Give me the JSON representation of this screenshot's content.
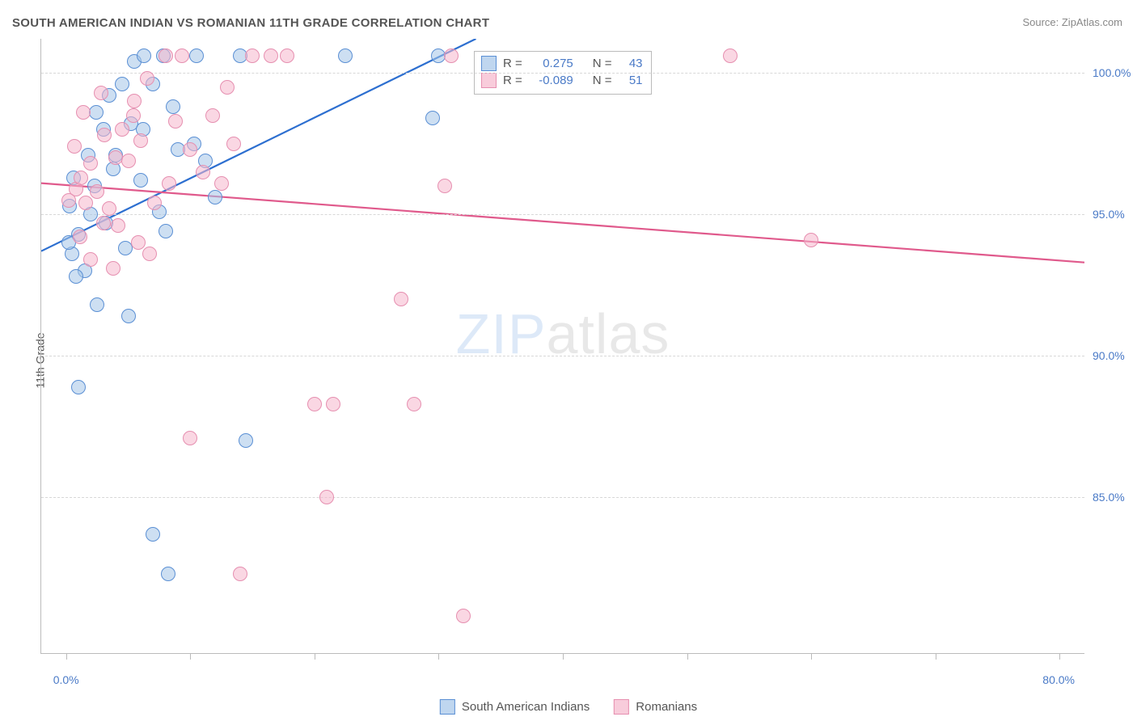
{
  "title": "SOUTH AMERICAN INDIAN VS ROMANIAN 11TH GRADE CORRELATION CHART",
  "source": "Source: ZipAtlas.com",
  "watermark": {
    "part1": "ZIP",
    "part2": "atlas"
  },
  "y_axis_label": "11th Grade",
  "chart": {
    "type": "scatter",
    "background_color": "#ffffff",
    "grid_color": "#d8d8d8",
    "axis_color": "#bbbbbb",
    "xlim": [
      -2,
      82
    ],
    "ylim": [
      79.5,
      101.2
    ],
    "x_ticks": [
      0,
      10,
      20,
      30,
      40,
      50,
      60,
      70,
      80
    ],
    "x_tick_labels": {
      "min": "0.0%",
      "max": "80.0%"
    },
    "y_ticks": [
      85.0,
      90.0,
      95.0,
      100.0
    ],
    "y_tick_labels": [
      "85.0%",
      "90.0%",
      "95.0%",
      "100.0%"
    ],
    "marker_radius": 8,
    "line_width": 2.2,
    "label_fontsize": 14,
    "tick_label_color": "#4a7ac7",
    "series": [
      {
        "key": "s1",
        "name": "South American Indians",
        "fill": "rgba(164,196,232,0.55)",
        "stroke": "#5a8fd4",
        "line_color": "#2d6fd0",
        "R": "0.275",
        "N": "43",
        "regression": {
          "x1": -2,
          "y1": 93.7,
          "x2": 33,
          "y2": 101.2
        },
        "points": [
          [
            1.5,
            93.0
          ],
          [
            0.8,
            92.8
          ],
          [
            0.5,
            93.6
          ],
          [
            1.0,
            94.3
          ],
          [
            2.0,
            95.0
          ],
          [
            2.3,
            96.0
          ],
          [
            3.8,
            96.6
          ],
          [
            4.0,
            97.1
          ],
          [
            3.0,
            98.0
          ],
          [
            5.2,
            98.2
          ],
          [
            3.5,
            99.2
          ],
          [
            4.5,
            99.6
          ],
          [
            5.5,
            100.4
          ],
          [
            6.3,
            100.6
          ],
          [
            7.8,
            100.6
          ],
          [
            10.5,
            100.6
          ],
          [
            14.0,
            100.6
          ],
          [
            22.5,
            100.6
          ],
          [
            30.0,
            100.6
          ],
          [
            7.0,
            99.6
          ],
          [
            8.6,
            98.8
          ],
          [
            10.3,
            97.5
          ],
          [
            6.0,
            96.2
          ],
          [
            8.0,
            94.4
          ],
          [
            2.5,
            91.8
          ],
          [
            5.0,
            91.4
          ],
          [
            1.0,
            88.9
          ],
          [
            7.0,
            83.7
          ],
          [
            8.2,
            82.3
          ],
          [
            14.5,
            87.0
          ],
          [
            29.5,
            98.4
          ],
          [
            12.0,
            95.6
          ],
          [
            11.2,
            96.9
          ],
          [
            7.5,
            95.1
          ],
          [
            4.8,
            93.8
          ],
          [
            0.6,
            96.3
          ],
          [
            0.3,
            95.3
          ],
          [
            1.8,
            97.1
          ],
          [
            2.4,
            98.6
          ],
          [
            6.2,
            98.0
          ],
          [
            9.0,
            97.3
          ],
          [
            3.2,
            94.7
          ],
          [
            0.2,
            94.0
          ]
        ]
      },
      {
        "key": "s2",
        "name": "Romanians",
        "fill": "rgba(245,182,204,0.55)",
        "stroke": "#e68fb0",
        "line_color": "#e05a8c",
        "R": "-0.089",
        "N": "51",
        "regression": {
          "x1": -2,
          "y1": 96.1,
          "x2": 82,
          "y2": 93.3
        },
        "points": [
          [
            0.8,
            95.9
          ],
          [
            1.2,
            96.3
          ],
          [
            1.6,
            95.4
          ],
          [
            2.0,
            96.8
          ],
          [
            2.5,
            95.8
          ],
          [
            3.0,
            94.7
          ],
          [
            3.5,
            95.2
          ],
          [
            4.0,
            97.0
          ],
          [
            4.5,
            98.0
          ],
          [
            5.0,
            96.9
          ],
          [
            5.5,
            99.0
          ],
          [
            6.0,
            97.6
          ],
          [
            6.5,
            99.8
          ],
          [
            8.0,
            100.6
          ],
          [
            9.3,
            100.6
          ],
          [
            13.0,
            99.5
          ],
          [
            15.0,
            100.6
          ],
          [
            16.5,
            100.6
          ],
          [
            17.8,
            100.6
          ],
          [
            8.8,
            98.3
          ],
          [
            10.0,
            97.3
          ],
          [
            11.0,
            96.5
          ],
          [
            12.5,
            96.1
          ],
          [
            13.5,
            97.5
          ],
          [
            7.1,
            95.4
          ],
          [
            2.0,
            93.4
          ],
          [
            1.1,
            94.2
          ],
          [
            0.2,
            95.5
          ],
          [
            3.8,
            93.1
          ],
          [
            5.8,
            94.0
          ],
          [
            10.0,
            87.1
          ],
          [
            14.0,
            82.3
          ],
          [
            20.0,
            88.3
          ],
          [
            21.0,
            85.0
          ],
          [
            21.5,
            88.3
          ],
          [
            27.0,
            92.0
          ],
          [
            28.0,
            88.3
          ],
          [
            32.0,
            80.8
          ],
          [
            31.0,
            100.6
          ],
          [
            30.5,
            96.0
          ],
          [
            53.5,
            100.6
          ],
          [
            60.0,
            94.1
          ],
          [
            2.8,
            99.3
          ],
          [
            1.4,
            98.6
          ],
          [
            0.7,
            97.4
          ],
          [
            4.2,
            94.6
          ],
          [
            6.7,
            93.6
          ],
          [
            8.3,
            96.1
          ],
          [
            11.8,
            98.5
          ],
          [
            3.1,
            97.8
          ],
          [
            5.4,
            98.5
          ]
        ]
      }
    ]
  },
  "stats_box": {
    "R_label": "R =",
    "N_label": "N ="
  },
  "legend": {
    "items": [
      "South American Indians",
      "Romanians"
    ]
  }
}
